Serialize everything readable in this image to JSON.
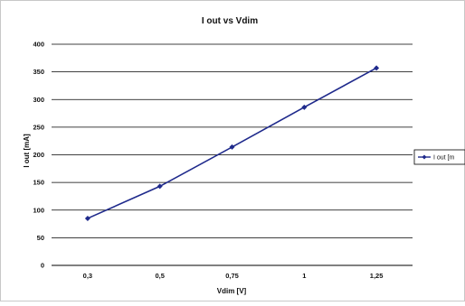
{
  "chart_data": {
    "type": "line",
    "title": "I out vs Vdim",
    "xlabel": "Vdim [V]",
    "ylabel": "I out [mA]",
    "categories": [
      "0,3",
      "0,5",
      "0,75",
      "1",
      "1,25"
    ],
    "ylim": [
      0,
      400
    ],
    "yticks": [
      "0",
      "50",
      "100",
      "150",
      "200",
      "250",
      "300",
      "350",
      "400"
    ],
    "ytick_values": [
      0,
      50,
      100,
      150,
      200,
      250,
      300,
      350,
      400
    ],
    "grid": true,
    "legend_position": "right",
    "series": [
      {
        "name": "I out [mA]",
        "values": [
          85,
          143,
          214,
          286,
          357
        ],
        "color": "#1f2a8c"
      }
    ]
  },
  "legend": {
    "label": "I out [m"
  },
  "colors": {
    "gridline": "#000000",
    "series": "#1f2a8c",
    "frame": "#c8c8c8"
  }
}
